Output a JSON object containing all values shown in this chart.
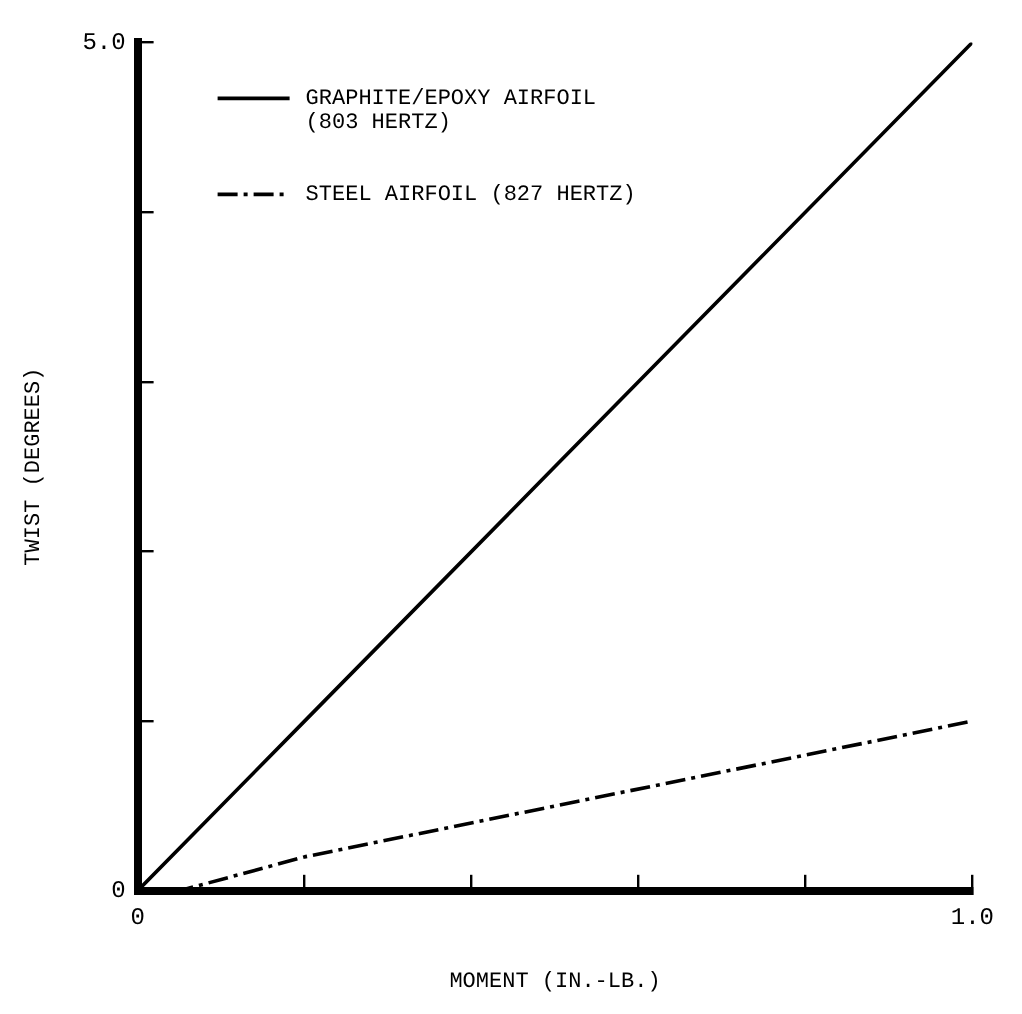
{
  "chart_data": {
    "type": "line",
    "xlabel": "MOMENT (IN.-LB.)",
    "ylabel": "TWIST (DEGREES)",
    "xlim": [
      0,
      1.0
    ],
    "xticks": [
      0,
      {
        "value": 0.2,
        "label": null
      },
      {
        "value": 0.4,
        "label": null
      },
      {
        "value": 0.6,
        "label": null
      },
      {
        "value": 0.8,
        "label": null
      },
      {
        "value": 1.0,
        "label": "1.0"
      }
    ],
    "ylim": [
      0,
      5.0
    ],
    "yticks": [
      0,
      {
        "value": 1,
        "label": null
      },
      {
        "value": 2,
        "label": null
      },
      {
        "value": 3,
        "label": null
      },
      {
        "value": 4,
        "label": null
      },
      {
        "value": 5,
        "label": "5.0"
      }
    ],
    "grid": false,
    "legend": "top left",
    "marker": "none",
    "series": [
      {
        "name": "GRAPHITE/EPOXY AIRFOIL (803 HERTZ)",
        "color": "#000000",
        "line_style": "solid",
        "x": [
          0,
          0.2,
          0.5,
          1.0
        ],
        "values": [
          0,
          1.0,
          2.5,
          5.0
        ]
      },
      {
        "name": "STEEL AIRFOIL (827 HERTZ)",
        "color": "#000000",
        "line_style": "dashed",
        "x": [
          0,
          0.05,
          0.2,
          0.5,
          1.0
        ],
        "values": [
          0,
          0,
          0.2,
          0.5,
          1.0
        ]
      }
    ]
  }
}
